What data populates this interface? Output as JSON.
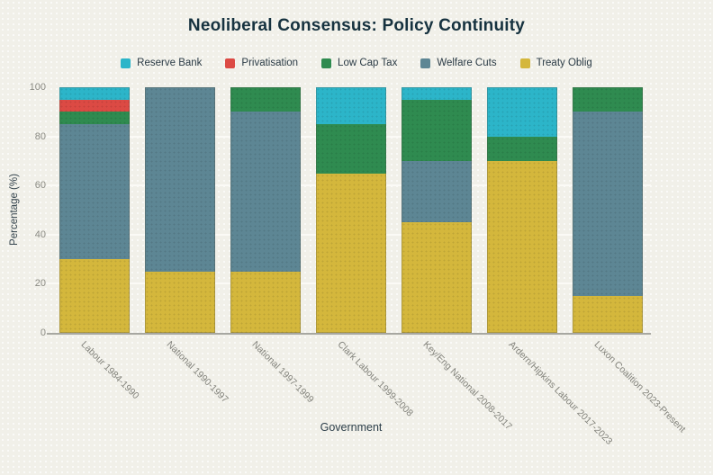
{
  "header": {
    "title": "Neoliberal Consensus: Policy Continuity"
  },
  "axes": {
    "x_label": "Government",
    "y_label": "Percentage (%)"
  },
  "chart_data": {
    "type": "bar",
    "stacked": true,
    "title": "Neoliberal Consensus: Policy Continuity",
    "xlabel": "Government",
    "ylabel": "Percentage (%)",
    "ylim": [
      0,
      100
    ],
    "yticks": [
      0,
      20,
      40,
      60,
      80,
      100
    ],
    "grid": true,
    "legend_position": "top",
    "legend_order": [
      "Reserve Bank",
      "Privatisation",
      "Low Cap Tax",
      "Welfare Cuts",
      "Treaty Oblig"
    ],
    "categories": [
      "Labour 1984-1990",
      "National 1990-1997",
      "National 1997-1999",
      "Clark Labour 1999-2008",
      "Key/Eng National 2008-2017",
      "Ardern/Hipkins Labour 2017-2023",
      "Luxon Coalition 2023-Present"
    ],
    "series": [
      {
        "name": "Treaty Oblig",
        "color": "#d4b73c",
        "values": [
          30,
          25,
          25,
          65,
          45,
          70,
          15
        ]
      },
      {
        "name": "Welfare Cuts",
        "color": "#5d8694",
        "values": [
          55,
          75,
          65,
          0,
          25,
          0,
          75
        ]
      },
      {
        "name": "Low Cap Tax",
        "color": "#2f8b50",
        "values": [
          5,
          0,
          10,
          20,
          25,
          10,
          10
        ]
      },
      {
        "name": "Privatisation",
        "color": "#dc4a44",
        "values": [
          5,
          0,
          0,
          0,
          0,
          0,
          0
        ]
      },
      {
        "name": "Reserve Bank",
        "color": "#2cb5c9",
        "values": [
          5,
          0,
          0,
          15,
          5,
          20,
          0
        ]
      }
    ]
  },
  "colors": {
    "background": "#f1f0e9",
    "title_text": "#16323f",
    "tick_text": "#8b8b84",
    "axis_line": "#a7a7a1",
    "gridline": "#fbfaf6"
  }
}
